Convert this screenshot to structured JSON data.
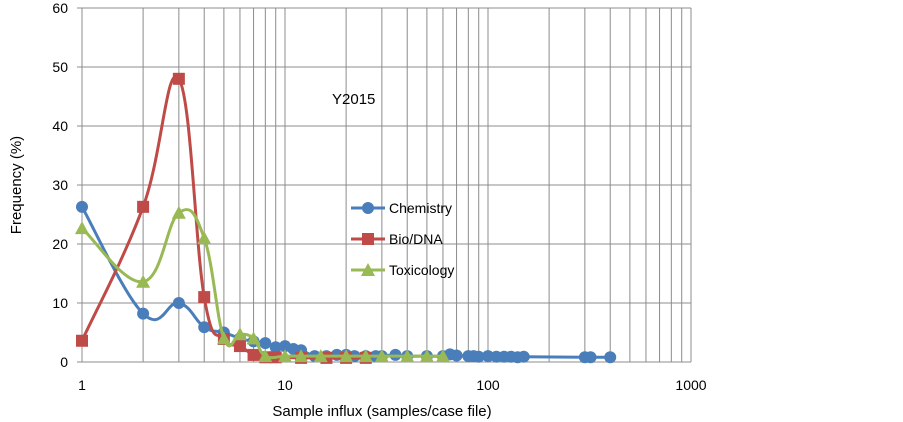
{
  "chart_data": {
    "type": "line",
    "title": "",
    "annotation": "Y2015",
    "xlabel": "Sample influx (samples/case file)",
    "ylabel": "Frequency (%)",
    "x_scale": "log",
    "xlim": [
      1,
      1000
    ],
    "ylim": [
      0,
      60
    ],
    "x_ticks": [
      1,
      10,
      100,
      1000
    ],
    "x_tick_labels": [
      "1",
      "10",
      "100",
      "1000"
    ],
    "y_ticks": [
      0,
      10,
      20,
      30,
      40,
      50,
      60
    ],
    "y_tick_labels": [
      "0",
      "10",
      "20",
      "30",
      "40",
      "50",
      "60"
    ],
    "grid": true,
    "legend_position": "center",
    "series": [
      {
        "name": "Chemistry",
        "color": "#4a7ebb",
        "marker": "circle",
        "x": [
          1,
          2,
          3,
          4,
          5,
          6,
          7,
          8,
          9,
          10,
          11,
          12,
          14,
          16,
          18,
          20,
          22,
          25,
          28,
          30,
          35,
          40,
          50,
          60,
          65,
          70,
          80,
          85,
          90,
          100,
          110,
          120,
          130,
          140,
          150,
          300,
          320,
          400
        ],
        "y": [
          26.3,
          8.2,
          10,
          5.9,
          5,
          4,
          3.5,
          3.2,
          2.5,
          2.7,
          2.2,
          2,
          1,
          1,
          1.2,
          1.2,
          1,
          1,
          1,
          1,
          1.2,
          1,
          1,
          1,
          1.3,
          1.1,
          1,
          1,
          0.9,
          1,
          0.9,
          0.9,
          0.9,
          0.8,
          0.9,
          0.8,
          0.8,
          0.8
        ]
      },
      {
        "name": "Bio/DNA",
        "color": "#be4b48",
        "marker": "square",
        "x": [
          1,
          2,
          3,
          4,
          5,
          6,
          7,
          8,
          9,
          12,
          16,
          20,
          25
        ],
        "y": [
          3.6,
          26.3,
          48,
          11,
          3.9,
          2.7,
          1.2,
          0.8,
          0.8,
          0.7,
          0.7,
          0.7,
          0.7
        ]
      },
      {
        "name": "Toxicology",
        "color": "#98b954",
        "marker": "triangle",
        "x": [
          1,
          2,
          3,
          4,
          5,
          6,
          7,
          8,
          10,
          12,
          15,
          20,
          25,
          30,
          40,
          50,
          60
        ],
        "y": [
          22.7,
          13.6,
          25.3,
          21,
          4,
          4.7,
          4,
          1,
          1,
          1,
          1,
          1,
          1,
          1,
          1,
          1,
          1
        ]
      }
    ]
  }
}
